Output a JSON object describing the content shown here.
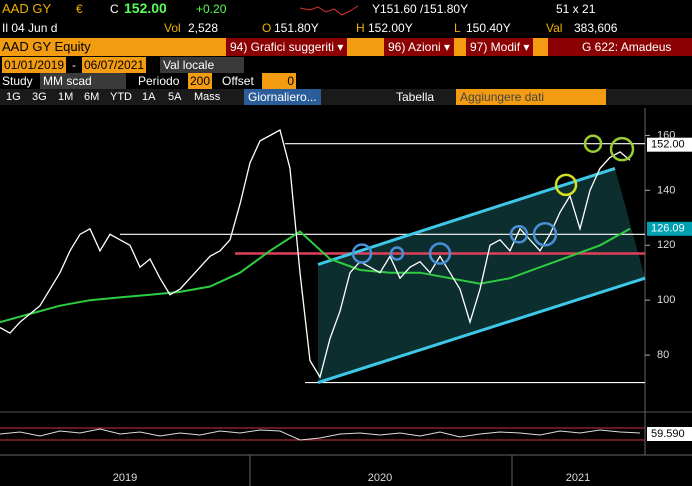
{
  "header": {
    "ticker": "AAD GY",
    "currency": "€",
    "close_label": "C",
    "close": "152.00",
    "change": "+0.20",
    "bid_ask": "Y151.60 /151.80Y",
    "size": "51 x 21",
    "date": "Il 04 Jun d",
    "vol_label": "Vol",
    "vol": "2,528",
    "open_label": "O",
    "open": "151.80Y",
    "high_label": "H",
    "high": "152.00Y",
    "low_label": "L",
    "low": "150.40Y",
    "val_label": "Val",
    "val": "383,606"
  },
  "menu": {
    "security": "AAD GY Equity",
    "items": [
      "94) Grafici suggeriti ▾",
      "96) Azioni ▾",
      "97) Modif ▾"
    ],
    "page": "G 622: Amadeus"
  },
  "controls": {
    "start": "01/01/2019",
    "sep": "-",
    "end": "06/07/2021",
    "currency": "Val locale",
    "study_label": "Study",
    "study": "MM scad",
    "period_label": "Periodo",
    "period": "200",
    "offset_label": "Offset",
    "offset": "0"
  },
  "toolbar": {
    "ranges": [
      "1G",
      "3G",
      "1M",
      "6M",
      "YTD",
      "1A",
      "5A",
      "Mass"
    ],
    "frequency": "Giornaliero...",
    "table": "Tabella",
    "add": "Aggiungere dati"
  },
  "chart": {
    "ylim": [
      60,
      170
    ],
    "yticks": [
      80,
      100,
      120,
      140,
      160
    ],
    "years": [
      "2019",
      "2020",
      "2021"
    ],
    "price": {
      "color": "#ffffff",
      "values": [
        90,
        88,
        92,
        95,
        98,
        104,
        110,
        118,
        124,
        126,
        118,
        124,
        122,
        120,
        112,
        115,
        108,
        102,
        104,
        108,
        112,
        116,
        118,
        122,
        135,
        150,
        158,
        160,
        162,
        148,
        110,
        78,
        72,
        86,
        96,
        110,
        114,
        112,
        110,
        116,
        108,
        112,
        114,
        110,
        116,
        110,
        104,
        92,
        104,
        120,
        122,
        118,
        126,
        122,
        118,
        124,
        132,
        138,
        126,
        140,
        148,
        152,
        154,
        151
      ]
    },
    "ma": {
      "color": "#2ecc40",
      "values": [
        92,
        95,
        98,
        100,
        101,
        102,
        103,
        105,
        110,
        118,
        125,
        115,
        111,
        110,
        110,
        108,
        106,
        108,
        112,
        116,
        120,
        126
      ]
    },
    "levels": [
      {
        "value": 157,
        "color": "#ffffff"
      },
      {
        "value": 124,
        "color": "#ffffff"
      },
      {
        "value": 117,
        "color": "#e0405a"
      },
      {
        "value": 70,
        "color": "#ffffff"
      }
    ],
    "channel": {
      "color": "#3ec8e8",
      "upper": [
        113,
        148
      ],
      "lower": [
        70,
        108
      ]
    },
    "last_label": "152.00",
    "ma_label": "126.09",
    "osc_label": "59.590"
  }
}
